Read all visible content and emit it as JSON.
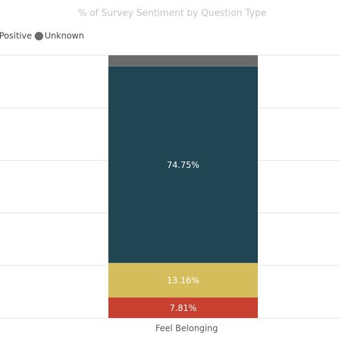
{
  "chart_data": {
    "type": "stacked_bar",
    "title": "% of Survey Sentiment by Question Type",
    "categories": [
      "Feel Belonging"
    ],
    "series": [
      {
        "color": "#c8402f",
        "values": [
          7.81
        ],
        "value_labels": [
          "7.81%"
        ]
      },
      {
        "color": "#d4bd5a",
        "values": [
          13.16
        ],
        "value_labels": [
          "13.16%"
        ]
      },
      {
        "name": "Positive",
        "color": "#1f4652",
        "values": [
          74.75
        ],
        "value_labels": [
          "74.75%"
        ]
      },
      {
        "name": "Unknown",
        "color": "#6b6b6b",
        "values": [
          4.28
        ]
      }
    ],
    "ylim": [
      0,
      100
    ],
    "yticks": [
      0,
      20,
      40,
      60,
      80,
      100
    ],
    "grid": true
  }
}
